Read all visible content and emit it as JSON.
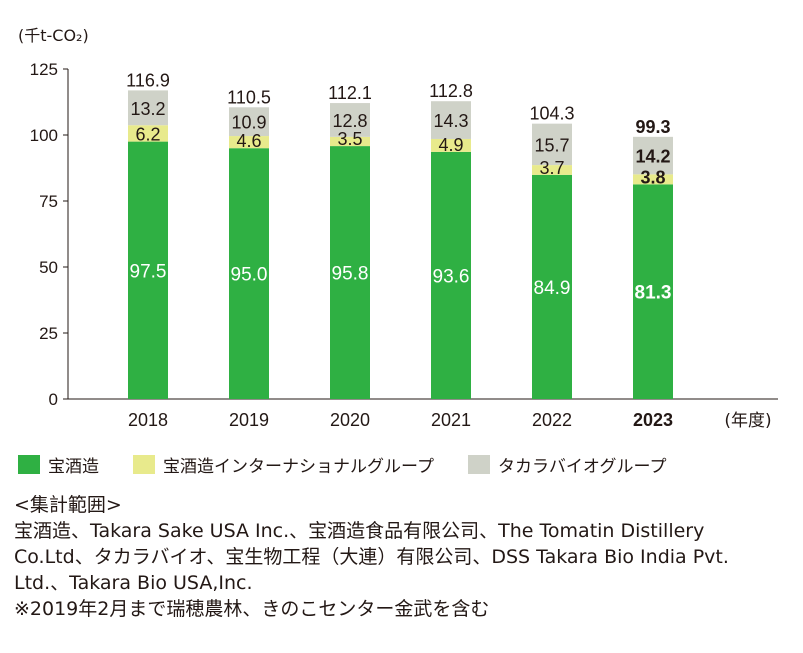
{
  "chart_data": {
    "type": "bar",
    "stacked": true,
    "y_unit": "(千t-CO₂)",
    "x_unit": "(年度)",
    "categories": [
      "2018",
      "2019",
      "2020",
      "2021",
      "2022",
      "2023"
    ],
    "highlight_category": "2023",
    "ylim": [
      0,
      125
    ],
    "yticks": [
      0,
      25,
      50,
      75,
      100,
      125
    ],
    "series": [
      {
        "name": "宝酒造",
        "color": "#2fb043",
        "values": [
          97.5,
          95.0,
          95.8,
          93.6,
          84.9,
          81.3
        ]
      },
      {
        "name": "宝酒造インターナショナルグループ",
        "color": "#e8ea8c",
        "values": [
          6.2,
          4.6,
          3.5,
          4.9,
          3.7,
          3.8
        ]
      },
      {
        "name": "タカラバイオグループ",
        "color": "#cfd2c8",
        "values": [
          13.2,
          10.9,
          12.8,
          14.3,
          15.7,
          14.2
        ]
      }
    ],
    "totals": [
      116.9,
      110.5,
      112.1,
      112.8,
      104.3,
      99.3
    ],
    "grid": false,
    "legend_position": "bottom"
  },
  "notes": {
    "heading": "<集計範囲>",
    "lines": [
      "宝酒造、Takara Sake USA Inc.、宝酒造食品有限公司、The Tomatin Distillery",
      "Co.Ltd、タカラバイオ、宝生物工程（大連）有限公司、DSS Takara Bio India Pvt.",
      "Ltd.、Takara Bio USA,Inc.",
      "※2019年2月まで瑞穂農林、きのこセンター金武を含む"
    ]
  }
}
